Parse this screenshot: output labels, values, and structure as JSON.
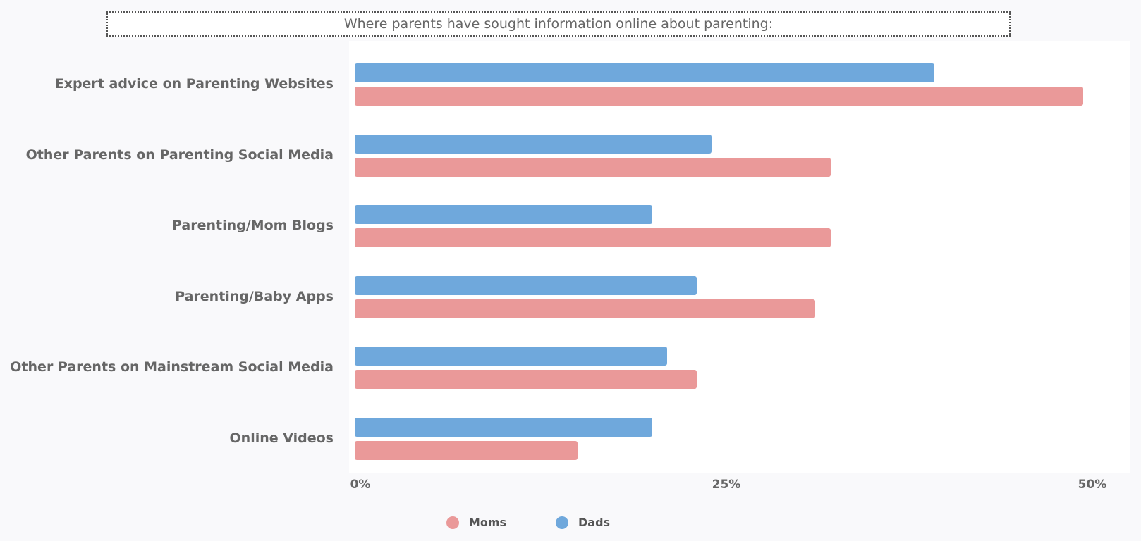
{
  "chart_data": {
    "type": "bar",
    "orientation": "horizontal",
    "title": "Where parents have sought information online about parenting:",
    "categories": [
      "Expert advice on Parenting Websites",
      "Other Parents on Parenting Social Media",
      "Parenting/Mom Blogs",
      "Parenting/Baby Apps",
      "Other Parents on Mainstream Social Media",
      "Online Videos"
    ],
    "series": [
      {
        "name": "Dads",
        "color": "#6fa8dc",
        "values": [
          39,
          24,
          20,
          23,
          21,
          20
        ]
      },
      {
        "name": "Moms",
        "color": "#ea9999",
        "values": [
          49,
          32,
          32,
          31,
          23,
          15
        ]
      }
    ],
    "xlim": [
      0,
      50
    ],
    "ticks": [
      "0%",
      "25%",
      "50%"
    ],
    "tick_values": [
      0,
      25,
      50
    ],
    "xlabel": "",
    "ylabel": "",
    "legend": {
      "placement": "bottom",
      "entries": [
        "Moms",
        "Dads"
      ]
    }
  }
}
